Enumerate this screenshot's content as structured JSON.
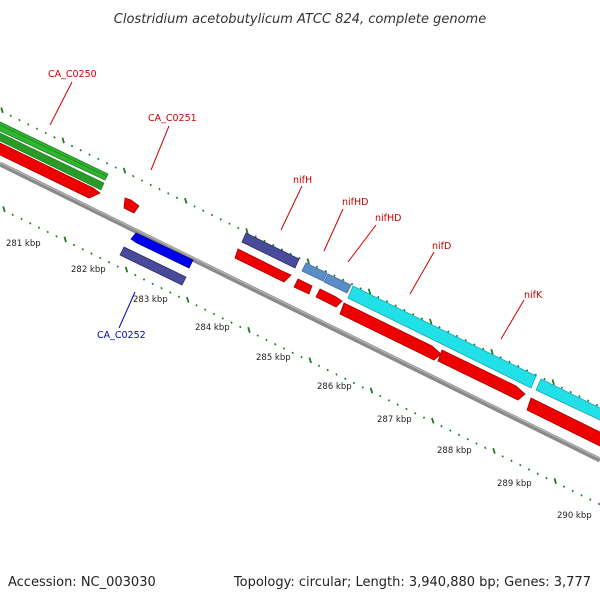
{
  "title": "Clostridium acetobutylicum ATCC 824, complete genome",
  "footer": {
    "accession": "Accession: NC_003030",
    "summary": "Topology: circular; Length: 3,940,880 bp; Genes: 3,777"
  },
  "colors": {
    "backbone": "#888888",
    "tick": "#1e7a1e",
    "forward_label": "#cc0000",
    "reverse_label": "#0000cc",
    "gene_green": "#2eb82e",
    "gene_red": "#ee0000",
    "gene_blue": "#0000ee",
    "gene_navy": "#4a4a9a",
    "gene_steel": "#5b8ec9",
    "gene_cyan": "#22e0e8"
  },
  "scale": {
    "unit": "kbp",
    "ticks": [
      {
        "kbp": 281,
        "label": "281 kbp"
      },
      {
        "kbp": 282,
        "label": "282 kbp"
      },
      {
        "kbp": 283,
        "label": "283 kbp"
      },
      {
        "kbp": 284,
        "label": "284 kbp"
      },
      {
        "kbp": 285,
        "label": "285 kbp"
      },
      {
        "kbp": 286,
        "label": "286 kbp"
      },
      {
        "kbp": 287,
        "label": "287 kbp"
      },
      {
        "kbp": 288,
        "label": "288 kbp"
      },
      {
        "kbp": 289,
        "label": "289 kbp"
      },
      {
        "kbp": 290,
        "label": "290 kbp"
      }
    ]
  },
  "gene_labels": [
    {
      "text": "CA_C0250",
      "color_key": "forward_label"
    },
    {
      "text": "CA_C0251",
      "color_key": "forward_label"
    },
    {
      "text": "nifH",
      "color_key": "forward_label"
    },
    {
      "text": "nifHD",
      "color_key": "forward_label"
    },
    {
      "text": "nifHD",
      "color_key": "forward_label"
    },
    {
      "text": "nifD",
      "color_key": "forward_label"
    },
    {
      "text": "nifK",
      "color_key": "forward_label"
    },
    {
      "text": "CA_C0252",
      "color_key": "reverse_label"
    }
  ]
}
